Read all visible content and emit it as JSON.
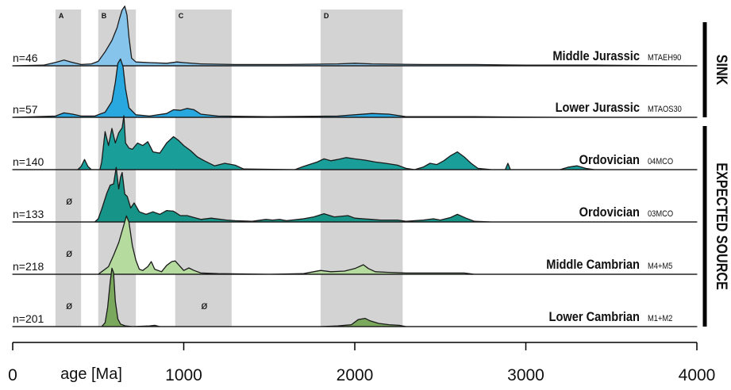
{
  "chart_data": {
    "type": "area",
    "title": "",
    "xlabel": "age [Ma]",
    "xlim": [
      0,
      4000
    ],
    "x_ticks": [
      {
        "value": 0,
        "label": "0"
      },
      {
        "value": 1000,
        "label": "1000"
      },
      {
        "value": 2000,
        "label": "2000"
      },
      {
        "value": 3000,
        "label": "3000"
      },
      {
        "value": 4000,
        "label": "4000"
      }
    ],
    "age_bands": [
      {
        "label": "A",
        "from": 250,
        "to": 400
      },
      {
        "label": "B",
        "from": 500,
        "to": 720
      },
      {
        "label": "C",
        "from": 950,
        "to": 1280
      },
      {
        "label": "D",
        "from": 1800,
        "to": 2280
      }
    ],
    "groups": [
      {
        "label": "SINK",
        "rows": [
          0,
          1
        ]
      },
      {
        "label": "EXPECTED SOURCE",
        "rows": [
          2,
          3,
          4,
          5
        ]
      }
    ],
    "series": [
      {
        "name": "Middle Jurassic",
        "sample": "MTAEH90",
        "n_label": "n=46",
        "color": "#86c4eb",
        "points": [
          [
            0,
            0.0
          ],
          [
            180,
            0.01
          ],
          [
            260,
            0.06
          ],
          [
            300,
            0.09
          ],
          [
            340,
            0.06
          ],
          [
            400,
            0.02
          ],
          [
            460,
            0.03
          ],
          [
            500,
            0.07
          ],
          [
            540,
            0.22
          ],
          [
            580,
            0.4
          ],
          [
            610,
            0.6
          ],
          [
            625,
            0.75
          ],
          [
            640,
            0.88
          ],
          [
            655,
            0.94
          ],
          [
            668,
            0.8
          ],
          [
            680,
            0.45
          ],
          [
            695,
            0.12
          ],
          [
            720,
            0.06
          ],
          [
            800,
            0.05
          ],
          [
            900,
            0.04
          ],
          [
            960,
            0.06
          ],
          [
            1000,
            0.05
          ],
          [
            1100,
            0.03
          ],
          [
            1300,
            0.02
          ],
          [
            1600,
            0.02
          ],
          [
            1900,
            0.03
          ],
          [
            2000,
            0.04
          ],
          [
            2100,
            0.03
          ],
          [
            2400,
            0.02
          ],
          [
            2700,
            0.02
          ],
          [
            3000,
            0.01
          ],
          [
            3400,
            0.01
          ],
          [
            4000,
            0.0
          ]
        ]
      },
      {
        "name": "Lower Jurassic",
        "sample": "MTAOS30",
        "n_label": "n=57",
        "color": "#29a8e0",
        "points": [
          [
            0,
            0.0
          ],
          [
            250,
            0.02
          ],
          [
            300,
            0.07
          ],
          [
            350,
            0.05
          ],
          [
            400,
            0.02
          ],
          [
            480,
            0.02
          ],
          [
            540,
            0.08
          ],
          [
            580,
            0.25
          ],
          [
            600,
            0.55
          ],
          [
            615,
            0.85
          ],
          [
            630,
            0.92
          ],
          [
            645,
            0.8
          ],
          [
            660,
            0.45
          ],
          [
            680,
            0.15
          ],
          [
            720,
            0.04
          ],
          [
            800,
            0.02
          ],
          [
            900,
            0.06
          ],
          [
            940,
            0.12
          ],
          [
            980,
            0.11
          ],
          [
            1020,
            0.14
          ],
          [
            1060,
            0.12
          ],
          [
            1100,
            0.05
          ],
          [
            1200,
            0.02
          ],
          [
            1500,
            0.01
          ],
          [
            1900,
            0.02
          ],
          [
            2100,
            0.06
          ],
          [
            2200,
            0.05
          ],
          [
            2300,
            0.01
          ],
          [
            2700,
            0.01
          ],
          [
            3200,
            0.0
          ],
          [
            4000,
            0.0
          ]
        ]
      },
      {
        "name": "Ordovician",
        "sample": "04MCO",
        "n_label": "n=140",
        "color": "#1a9e9a",
        "points": [
          [
            0,
            0.0
          ],
          [
            380,
            0.0
          ],
          [
            400,
            0.05
          ],
          [
            420,
            0.16
          ],
          [
            440,
            0.05
          ],
          [
            460,
            0.0
          ],
          [
            510,
            0.0
          ],
          [
            520,
            0.12
          ],
          [
            540,
            0.6
          ],
          [
            560,
            0.38
          ],
          [
            580,
            0.65
          ],
          [
            600,
            0.42
          ],
          [
            620,
            0.58
          ],
          [
            640,
            0.66
          ],
          [
            650,
            0.85
          ],
          [
            660,
            0.42
          ],
          [
            680,
            0.34
          ],
          [
            700,
            0.32
          ],
          [
            730,
            0.42
          ],
          [
            760,
            0.38
          ],
          [
            790,
            0.44
          ],
          [
            820,
            0.28
          ],
          [
            860,
            0.26
          ],
          [
            900,
            0.42
          ],
          [
            940,
            0.52
          ],
          [
            970,
            0.46
          ],
          [
            1000,
            0.38
          ],
          [
            1040,
            0.3
          ],
          [
            1080,
            0.2
          ],
          [
            1120,
            0.14
          ],
          [
            1180,
            0.06
          ],
          [
            1240,
            0.1
          ],
          [
            1300,
            0.07
          ],
          [
            1350,
            0.01
          ],
          [
            1650,
            0.0
          ],
          [
            1700,
            0.05
          ],
          [
            1780,
            0.12
          ],
          [
            1820,
            0.17
          ],
          [
            1860,
            0.14
          ],
          [
            1900,
            0.16
          ],
          [
            1950,
            0.19
          ],
          [
            2000,
            0.17
          ],
          [
            2060,
            0.15
          ],
          [
            2120,
            0.12
          ],
          [
            2180,
            0.1
          ],
          [
            2250,
            0.07
          ],
          [
            2300,
            0.02
          ],
          [
            2350,
            0.0
          ],
          [
            2400,
            0.04
          ],
          [
            2440,
            0.1
          ],
          [
            2480,
            0.08
          ],
          [
            2520,
            0.14
          ],
          [
            2560,
            0.22
          ],
          [
            2600,
            0.28
          ],
          [
            2640,
            0.2
          ],
          [
            2680,
            0.1
          ],
          [
            2720,
            0.02
          ],
          [
            2800,
            0.0
          ],
          [
            2880,
            0.0
          ],
          [
            2895,
            0.1
          ],
          [
            2910,
            0.0
          ],
          [
            3200,
            0.0
          ],
          [
            3250,
            0.04
          ],
          [
            3300,
            0.06
          ],
          [
            3350,
            0.02
          ],
          [
            3400,
            0.0
          ],
          [
            4000,
            0.0
          ]
        ]
      },
      {
        "name": "Ordovician",
        "sample": "03MCO",
        "n_label": "n=133",
        "color": "#179488",
        "points": [
          [
            0,
            0.0
          ],
          [
            480,
            0.0
          ],
          [
            500,
            0.05
          ],
          [
            520,
            0.2
          ],
          [
            550,
            0.45
          ],
          [
            570,
            0.58
          ],
          [
            590,
            0.6
          ],
          [
            605,
            0.86
          ],
          [
            620,
            0.52
          ],
          [
            630,
            0.7
          ],
          [
            640,
            0.78
          ],
          [
            655,
            0.44
          ],
          [
            670,
            0.4
          ],
          [
            690,
            0.22
          ],
          [
            710,
            0.3
          ],
          [
            740,
            0.16
          ],
          [
            780,
            0.12
          ],
          [
            820,
            0.16
          ],
          [
            860,
            0.12
          ],
          [
            900,
            0.18
          ],
          [
            940,
            0.17
          ],
          [
            980,
            0.1
          ],
          [
            1020,
            0.1
          ],
          [
            1060,
            0.07
          ],
          [
            1100,
            0.04
          ],
          [
            1160,
            0.06
          ],
          [
            1250,
            0.03
          ],
          [
            1300,
            0.02
          ],
          [
            1400,
            0.01
          ],
          [
            1480,
            0.04
          ],
          [
            1520,
            0.03
          ],
          [
            1560,
            0.04
          ],
          [
            1600,
            0.02
          ],
          [
            1700,
            0.05
          ],
          [
            1760,
            0.08
          ],
          [
            1820,
            0.13
          ],
          [
            1880,
            0.08
          ],
          [
            1960,
            0.1
          ],
          [
            2000,
            0.06
          ],
          [
            2050,
            0.05
          ],
          [
            2100,
            0.04
          ],
          [
            2150,
            0.03
          ],
          [
            2250,
            0.03
          ],
          [
            2300,
            0.01
          ],
          [
            2400,
            0.03
          ],
          [
            2460,
            0.05
          ],
          [
            2500,
            0.03
          ],
          [
            2560,
            0.07
          ],
          [
            2600,
            0.12
          ],
          [
            2650,
            0.06
          ],
          [
            2700,
            0.01
          ],
          [
            2800,
            0.0
          ],
          [
            4000,
            0.0
          ]
        ]
      },
      {
        "name": "Middle Cambrian",
        "sample": "M4+M5",
        "n_label": "n=218",
        "color": "#b6db9f",
        "points": [
          [
            0,
            0.0
          ],
          [
            500,
            0.0
          ],
          [
            520,
            0.04
          ],
          [
            560,
            0.12
          ],
          [
            590,
            0.3
          ],
          [
            620,
            0.5
          ],
          [
            650,
            0.78
          ],
          [
            665,
            0.92
          ],
          [
            680,
            0.82
          ],
          [
            700,
            0.45
          ],
          [
            720,
            0.22
          ],
          [
            740,
            0.08
          ],
          [
            760,
            0.06
          ],
          [
            790,
            0.12
          ],
          [
            810,
            0.2
          ],
          [
            830,
            0.08
          ],
          [
            870,
            0.04
          ],
          [
            900,
            0.14
          ],
          [
            930,
            0.2
          ],
          [
            950,
            0.21
          ],
          [
            980,
            0.12
          ],
          [
            1000,
            0.06
          ],
          [
            1030,
            0.1
          ],
          [
            1060,
            0.06
          ],
          [
            1100,
            0.02
          ],
          [
            1200,
            0.01
          ],
          [
            1500,
            0.0
          ],
          [
            1700,
            0.01
          ],
          [
            1800,
            0.06
          ],
          [
            1860,
            0.04
          ],
          [
            1940,
            0.05
          ],
          [
            2000,
            0.09
          ],
          [
            2050,
            0.15
          ],
          [
            2080,
            0.09
          ],
          [
            2120,
            0.04
          ],
          [
            2200,
            0.03
          ],
          [
            2300,
            0.02
          ],
          [
            2480,
            0.02
          ],
          [
            2640,
            0.02
          ],
          [
            2700,
            0.0
          ],
          [
            4000,
            0.0
          ]
        ]
      },
      {
        "name": "Lower Cambrian",
        "sample": "M1+M2",
        "n_label": "n=201",
        "color": "#7aa85c",
        "points": [
          [
            0,
            0.0
          ],
          [
            520,
            0.0
          ],
          [
            540,
            0.06
          ],
          [
            555,
            0.3
          ],
          [
            570,
            0.7
          ],
          [
            580,
            0.92
          ],
          [
            590,
            0.85
          ],
          [
            600,
            0.4
          ],
          [
            615,
            0.12
          ],
          [
            630,
            0.04
          ],
          [
            660,
            0.01
          ],
          [
            700,
            0.0
          ],
          [
            800,
            0.01
          ],
          [
            830,
            0.02
          ],
          [
            860,
            0.0
          ],
          [
            1000,
            0.0
          ],
          [
            1800,
            0.0
          ],
          [
            1900,
            0.01
          ],
          [
            1980,
            0.03
          ],
          [
            2020,
            0.11
          ],
          [
            2060,
            0.13
          ],
          [
            2090,
            0.09
          ],
          [
            2140,
            0.05
          ],
          [
            2200,
            0.03
          ],
          [
            2260,
            0.02
          ],
          [
            2300,
            0.0
          ],
          [
            4000,
            0.0
          ]
        ]
      }
    ],
    "row_annotations": [
      {
        "row": 3,
        "x": 330,
        "label": "ø"
      },
      {
        "row": 4,
        "x": 330,
        "label": "ø"
      },
      {
        "row": 5,
        "x": 330,
        "label": "ø"
      },
      {
        "row": 5,
        "x": 1120,
        "label": "ø"
      }
    ]
  }
}
